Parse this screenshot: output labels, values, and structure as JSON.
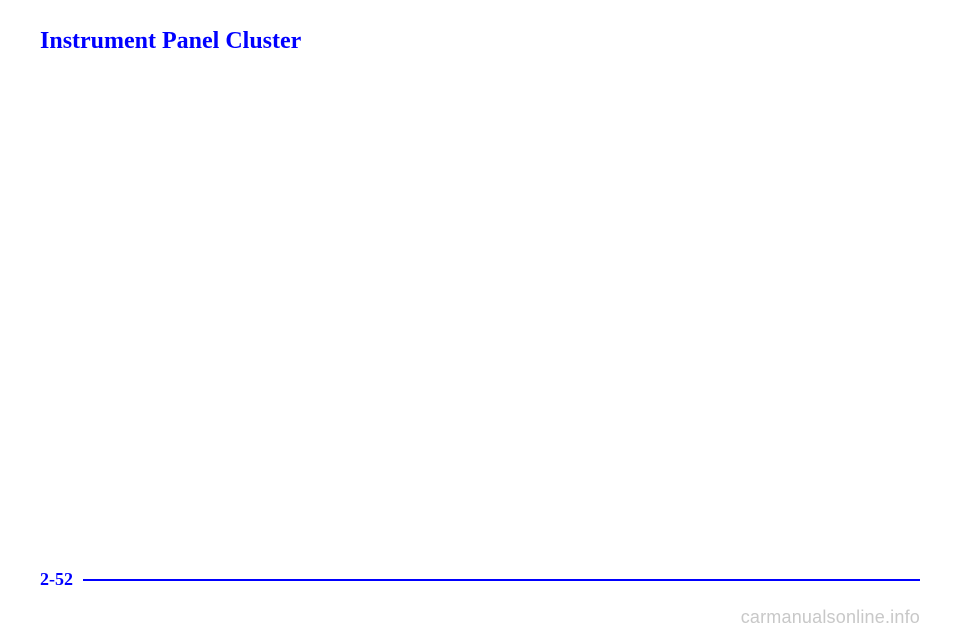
{
  "heading": "Instrument Panel Cluster",
  "page_number": "2-52",
  "watermark": "carmanualsonline.info",
  "colors": {
    "accent": "#0000ff",
    "watermark": "#c8c8c8",
    "background": "#ffffff"
  }
}
